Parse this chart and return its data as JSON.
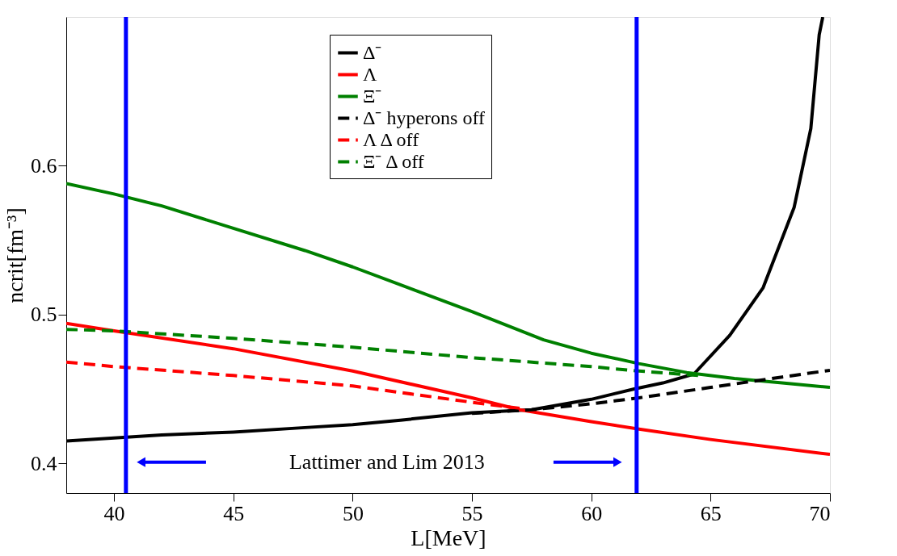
{
  "chart_data": {
    "type": "line",
    "xlabel": "L[MeV]",
    "ylabel": "ncrit[fm⁻³]",
    "xlim": [
      38,
      70
    ],
    "ylim": [
      0.38,
      0.7
    ],
    "xticks": [
      40,
      45,
      50,
      55,
      60,
      65,
      70
    ],
    "yticks": [
      0.4,
      0.5,
      0.6
    ],
    "grid": false,
    "legend": "top",
    "series": [
      {
        "name": "Δ⁻",
        "color": "#000000",
        "line_style": "solid",
        "x": [
          38,
          40,
          42,
          45,
          48,
          50,
          52,
          55,
          57.5,
          60,
          61.8,
          63,
          64.3,
          65.8,
          67.2,
          68.5,
          69.2,
          69.55,
          69.7
        ],
        "values": [
          0.415,
          0.417,
          0.419,
          0.421,
          0.424,
          0.426,
          0.429,
          0.434,
          0.436,
          0.443,
          0.45,
          0.454,
          0.46,
          0.486,
          0.518,
          0.572,
          0.625,
          0.688,
          0.7
        ]
      },
      {
        "name": "Λ",
        "color": "#ff0000",
        "line_style": "solid",
        "x": [
          38,
          40,
          45,
          50,
          55,
          57,
          60,
          62,
          65,
          70
        ],
        "values": [
          0.494,
          0.489,
          0.477,
          0.462,
          0.444,
          0.436,
          0.428,
          0.423,
          0.416,
          0.406
        ]
      },
      {
        "name": "Ξ⁻",
        "color": "#008000",
        "line_style": "solid",
        "x": [
          38,
          40,
          42,
          45,
          48,
          50,
          52,
          55,
          58,
          60,
          62,
          64,
          66,
          68,
          70
        ],
        "values": [
          0.588,
          0.581,
          0.573,
          0.558,
          0.543,
          0.532,
          0.52,
          0.502,
          0.483,
          0.474,
          0.467,
          0.461,
          0.457,
          0.454,
          0.451
        ]
      },
      {
        "name": "Δ⁻ hyperons off",
        "color": "#000000",
        "line_style": "dashed",
        "x": [
          55,
          57.5,
          60,
          62,
          65,
          68,
          70
        ],
        "values": [
          0.4335,
          0.436,
          0.44,
          0.444,
          0.451,
          0.458,
          0.4625
        ]
      },
      {
        "name": "Λ Δ off",
        "color": "#ff0000",
        "line_style": "dashed",
        "x": [
          38,
          40,
          45,
          50,
          55,
          57
        ],
        "values": [
          0.468,
          0.465,
          0.459,
          0.452,
          0.441,
          0.437
        ]
      },
      {
        "name": "Ξ⁻ Δ off",
        "color": "#008000",
        "line_style": "dashed",
        "x": [
          38,
          40,
          45,
          50,
          55,
          60,
          62,
          64.5
        ],
        "values": [
          0.49,
          0.489,
          0.484,
          0.478,
          0.471,
          0.465,
          0.462,
          0.459
        ]
      }
    ],
    "ref_lines": [
      {
        "axis": "x",
        "value": 40.5,
        "color": "#0000ff"
      },
      {
        "axis": "x",
        "value": 61.9,
        "color": "#0000ff"
      }
    ],
    "annotations": [
      "Lattimer and Lim 2013"
    ]
  }
}
